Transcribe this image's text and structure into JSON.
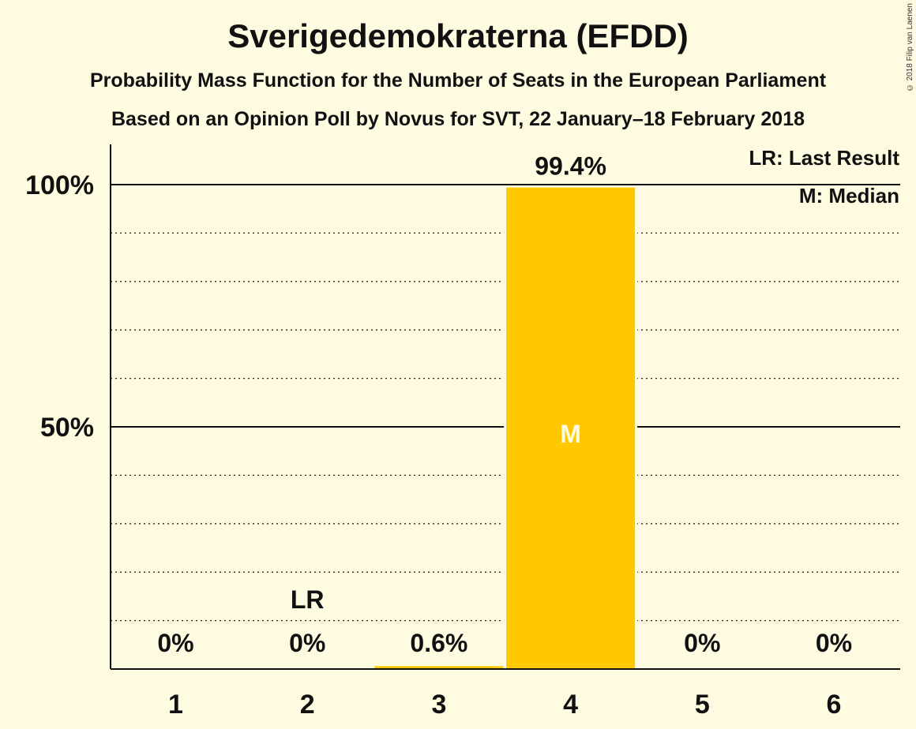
{
  "chart_data": {
    "type": "bar",
    "title": "Sverigedemokraterna (EFDD)",
    "subtitle": "Probability Mass Function for the Number of Seats in the European Parliament",
    "subtitle2": "Based on an Opinion Poll by Novus for SVT, 22 January–18 February 2018",
    "categories": [
      "1",
      "2",
      "3",
      "4",
      "5",
      "6"
    ],
    "values": [
      0,
      0,
      0.6,
      99.4,
      0,
      0
    ],
    "value_labels": [
      "0%",
      "0%",
      "0.6%",
      "99.4%",
      "0%",
      "0%"
    ],
    "ylim": [
      0,
      100
    ],
    "yticks": [
      {
        "value": 50,
        "label": "50%"
      },
      {
        "value": 100,
        "label": "100%"
      }
    ],
    "minor_gridlines": [
      10,
      20,
      30,
      40,
      60,
      70,
      80,
      90
    ],
    "last_result": {
      "category": "2",
      "label": "LR"
    },
    "median": {
      "category": "4",
      "label": "M"
    },
    "legend": [
      "LR: Last Result",
      "M: Median"
    ],
    "legend_position": "top-right",
    "bar_color": "#ffc800",
    "background_color": "#fffbe0"
  },
  "copyright": "© 2018 Filip van Laenen"
}
